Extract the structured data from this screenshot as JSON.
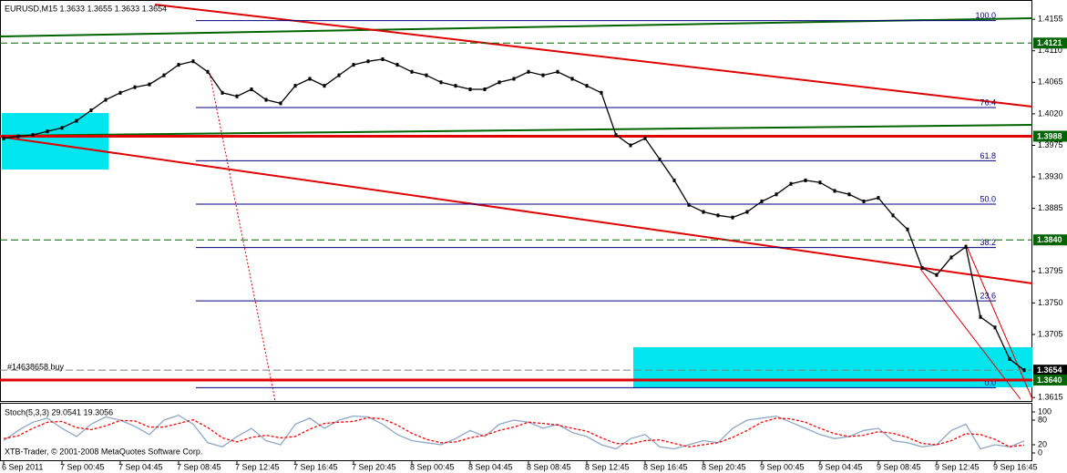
{
  "chart_data": [
    {
      "type": "line",
      "title": "EURUSD,M15  1.3633 1.3655 1.3633 1.3654",
      "note": "#14638658 buy",
      "categories": [
        "6 Sep 2011",
        null,
        null,
        null,
        "7 Sep 00:45",
        null,
        null,
        null,
        "7 Sep 04:45",
        null,
        null,
        null,
        "7 Sep 08:45",
        null,
        null,
        null,
        "7 Sep 12:45",
        null,
        null,
        null,
        "7 Sep 16:45",
        null,
        null,
        null,
        "7 Sep 20:45",
        null,
        null,
        null,
        "8 Sep 00:45",
        null,
        null,
        null,
        "8 Sep 04:45",
        null,
        null,
        null,
        "8 Sep 08:45",
        null,
        null,
        null,
        "8 Sep 12:45",
        null,
        null,
        null,
        "8 Sep 16:45",
        null,
        null,
        null,
        "8 Sep 20:45",
        null,
        null,
        null,
        "9 Sep 00:45",
        null,
        null,
        null,
        "9 Sep 04:45",
        null,
        null,
        null,
        "9 Sep 08:45",
        null,
        null,
        null,
        "9 Sep 12:45",
        null,
        null,
        null,
        "9 Sep 16:45",
        null,
        null
      ],
      "series": [
        {
          "name": "EURUSD",
          "color": "#000000",
          "values": [
            1.3985,
            1.3988,
            1.399,
            1.3995,
            1.4,
            1.401,
            1.4025,
            1.404,
            1.405,
            1.4058,
            1.4062,
            1.4075,
            1.409,
            1.4095,
            1.408,
            1.405,
            1.4045,
            1.4055,
            1.404,
            1.4035,
            1.406,
            1.407,
            1.406,
            1.4075,
            1.409,
            1.4095,
            1.4098,
            1.409,
            1.408,
            1.4075,
            1.4065,
            1.406,
            1.4055,
            1.4055,
            1.4065,
            1.407,
            1.408,
            1.4075,
            1.408,
            1.407,
            1.406,
            1.405,
            1.399,
            1.3975,
            1.3985,
            1.3955,
            1.3925,
            1.389,
            1.388,
            1.3875,
            1.3872,
            1.388,
            1.3895,
            1.3905,
            1.392,
            1.3925,
            1.3922,
            1.391,
            1.3905,
            1.3895,
            1.39,
            1.3875,
            1.3855,
            1.38,
            1.379,
            1.3815,
            1.383,
            1.373,
            1.3715,
            1.367,
            1.3654
          ]
        }
      ],
      "ylim": [
        1.361,
        1.4176
      ],
      "yticks": [
        {
          "value": 1.4155,
          "label": "1.4155"
        },
        {
          "value": 1.411,
          "label": "1.4110"
        },
        {
          "value": 1.4065,
          "label": "1.4065"
        },
        {
          "value": 1.402,
          "label": "1.4020"
        },
        {
          "value": 1.3975,
          "label": "1.3975"
        },
        {
          "value": 1.393,
          "label": "1.3930"
        },
        {
          "value": 1.3885,
          "label": "1.3885"
        },
        {
          "value": 1.3795,
          "label": "1.3795"
        },
        {
          "value": 1.375,
          "label": "1.3750"
        },
        {
          "value": 1.3705,
          "label": "1.3705"
        },
        {
          "value": 1.3615,
          "label": "1.3615"
        }
      ],
      "levels": [
        {
          "value": 1.4121,
          "label": "1.4121",
          "box_color": "#006400",
          "line_color": "#006400",
          "dashed": true
        },
        {
          "value": 1.3988,
          "label": "1.3988",
          "box_color": "#006400",
          "line_color": "#e00000",
          "dashed": false
        },
        {
          "value": 1.384,
          "label": "1.3840",
          "box_color": "#006400",
          "line_color": "#006400",
          "dashed": true
        },
        {
          "value": 1.3654,
          "label": "1.3654",
          "box_color": "#000000",
          "line_color": "#808080",
          "dashed": true
        },
        {
          "value": 1.364,
          "label": "1.3640",
          "box_color": "#006400",
          "line_color": "#e00000",
          "dashed": false
        }
      ],
      "fib": [
        {
          "value": 1.4153,
          "label": "100.0"
        },
        {
          "value": 1.4029,
          "label": "76.4"
        },
        {
          "value": 1.3953,
          "label": "61.8"
        },
        {
          "value": 1.3891,
          "label": "50.0"
        },
        {
          "value": 1.3829,
          "label": "38.2"
        },
        {
          "value": 1.3753,
          "label": "23.6"
        },
        {
          "value": 1.3629,
          "label": "0.0"
        }
      ],
      "fib_color": "#000080"
    },
    {
      "type": "line",
      "title": "Stoch(5,3,3) 29.0541 19.3056",
      "footer": "XTB-Trader, © 2001-2008 MetaQuotes Software Corp.",
      "series": [
        {
          "name": "Main",
          "color": "#8fa8c8",
          "dashed": false,
          "values": [
            30,
            55,
            75,
            85,
            60,
            40,
            70,
            88,
            80,
            65,
            45,
            80,
            92,
            70,
            25,
            15,
            40,
            60,
            30,
            20,
            70,
            85,
            60,
            80,
            90,
            88,
            70,
            45,
            30,
            25,
            20,
            35,
            55,
            40,
            70,
            80,
            75,
            60,
            70,
            50,
            40,
            20,
            10,
            35,
            45,
            15,
            10,
            20,
            30,
            25,
            60,
            80,
            85,
            90,
            75,
            60,
            45,
            35,
            40,
            55,
            60,
            30,
            25,
            15,
            20,
            55,
            70,
            10,
            20,
            15,
            29.0541
          ]
        },
        {
          "name": "Signal",
          "color": "#ff0000",
          "dashed": true,
          "values": [
            35,
            42,
            60,
            75,
            77,
            62,
            57,
            66,
            79,
            78,
            63,
            63,
            72,
            81,
            62,
            37,
            27,
            38,
            43,
            37,
            40,
            58,
            72,
            75,
            77,
            86,
            83,
            68,
            48,
            33,
            25,
            27,
            37,
            43,
            55,
            63,
            75,
            72,
            68,
            60,
            53,
            37,
            23,
            22,
            30,
            32,
            23,
            15,
            20,
            25,
            38,
            55,
            75,
            85,
            83,
            75,
            60,
            47,
            40,
            43,
            52,
            48,
            38,
            23,
            20,
            30,
            47,
            45,
            33,
            15,
            19.3056
          ]
        }
      ],
      "ylim": [
        0,
        100
      ],
      "yticks": [
        100,
        80,
        20,
        0
      ]
    }
  ]
}
